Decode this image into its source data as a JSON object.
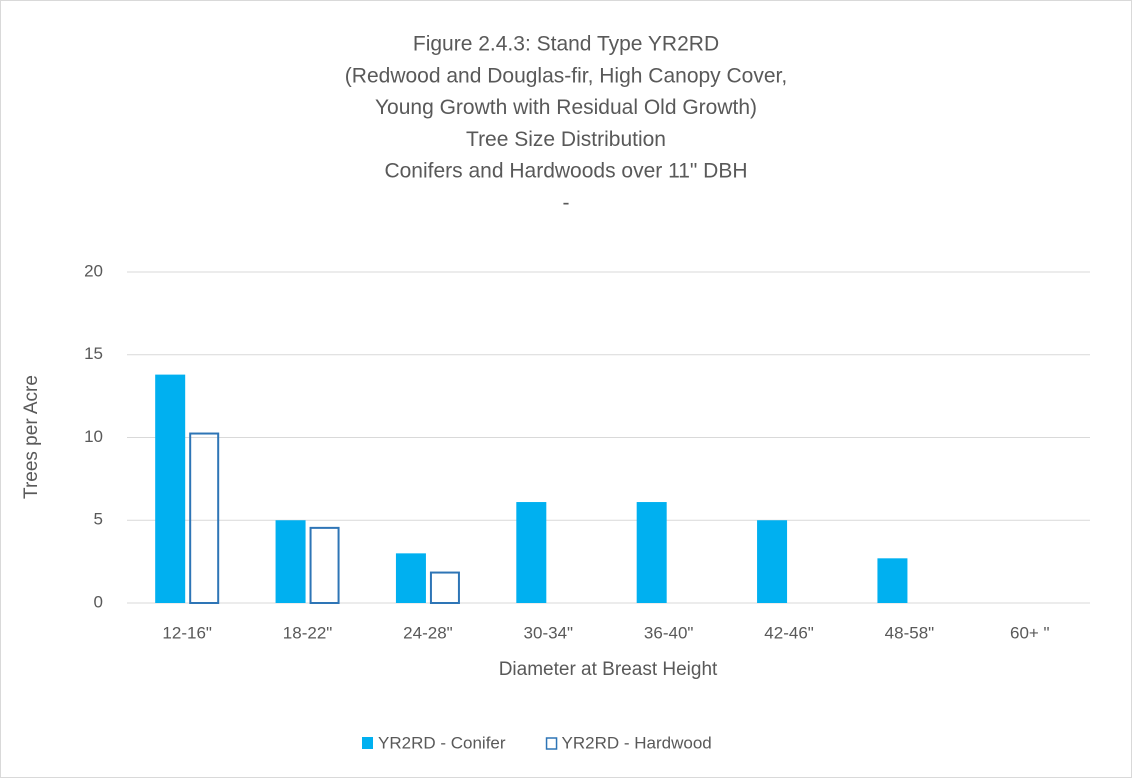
{
  "chart_data": {
    "type": "bar",
    "title": [
      "Figure  2.4.3: Stand Type YR2RD",
      "(Redwood and Douglas-fir, High Canopy Cover,",
      "Young Growth with Residual Old Growth)",
      "Tree Size Distribution",
      "Conifers and Hardwoods over 11\" DBH",
      "-"
    ],
    "x_label": "Diameter at Breast Height",
    "y_label": "Trees per Acre",
    "categories": [
      "12-16\"",
      "18-22\"",
      "24-28\"",
      "30-34\"",
      "36-40\"",
      "42-46\"",
      "48-58\"",
      "60+ \""
    ],
    "series": [
      {
        "name": "YR2RD - Conifer",
        "color": "#00b0f0",
        "style": "filled",
        "values": [
          13.8,
          5.0,
          3.0,
          6.1,
          6.1,
          5.0,
          2.7,
          0
        ]
      },
      {
        "name": "YR2RD - Hardwood",
        "color": "#2e75b6",
        "style": "outline",
        "values": [
          10.3,
          4.6,
          1.9,
          0,
          0,
          0,
          0,
          0
        ]
      }
    ],
    "ylim": [
      0,
      20
    ],
    "yticks": [
      0,
      5,
      10,
      15,
      20
    ],
    "grid": true,
    "legend": "bottom"
  }
}
